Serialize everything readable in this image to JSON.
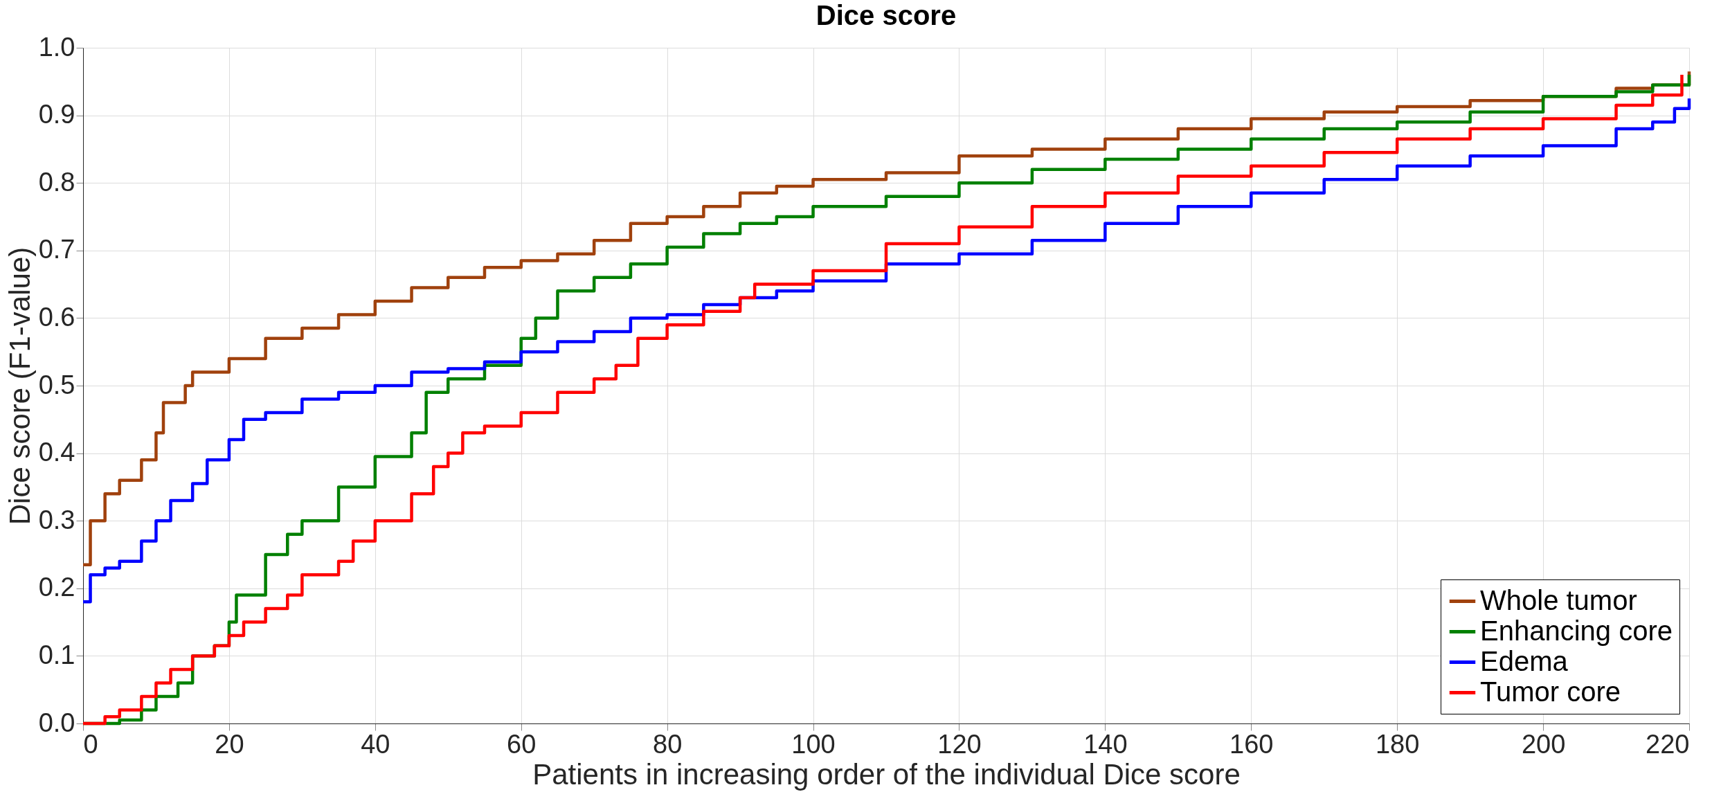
{
  "chart_data": {
    "type": "step",
    "title": "Dice score",
    "xlabel": "Patients in increasing order of the individual Dice score",
    "ylabel": "Dice score (F1-value)",
    "xlim": [
      0,
      220
    ],
    "xticks": [
      0,
      20,
      40,
      60,
      80,
      100,
      120,
      140,
      160,
      180,
      200,
      220
    ],
    "ylim": [
      0,
      1
    ],
    "yticks": [
      {
        "value": 0,
        "label": "0.0"
      },
      0.1,
      0.2,
      0.3,
      0.4,
      0.5,
      0.6,
      0.7,
      0.8,
      0.9,
      {
        "value": 1,
        "label": "1.0"
      }
    ],
    "grid": true,
    "legend": "bottom right",
    "line_style": "solid",
    "series": [
      {
        "name": "Whole tumor",
        "color": "#a0410d",
        "x": [
          0,
          1,
          3,
          5,
          8,
          10,
          11,
          14,
          15,
          20,
          25,
          30,
          35,
          40,
          45,
          50,
          55,
          60,
          65,
          70,
          75,
          80,
          85,
          90,
          95,
          100,
          110,
          120,
          130,
          140,
          150,
          160,
          170,
          180,
          190,
          200,
          210,
          215,
          220
        ],
        "values": [
          0.235,
          0.3,
          0.34,
          0.36,
          0.39,
          0.43,
          0.475,
          0.5,
          0.52,
          0.54,
          0.57,
          0.585,
          0.605,
          0.625,
          0.645,
          0.66,
          0.675,
          0.685,
          0.695,
          0.715,
          0.74,
          0.75,
          0.765,
          0.785,
          0.795,
          0.805,
          0.815,
          0.84,
          0.85,
          0.865,
          0.88,
          0.895,
          0.905,
          0.913,
          0.922,
          0.928,
          0.94,
          0.945,
          0.965
        ]
      },
      {
        "name": "Enhancing core",
        "color": "#008000",
        "x": [
          0,
          5,
          8,
          10,
          13,
          15,
          18,
          20,
          21,
          25,
          28,
          30,
          35,
          40,
          45,
          47,
          50,
          55,
          60,
          62,
          65,
          70,
          75,
          80,
          85,
          90,
          95,
          100,
          110,
          120,
          130,
          140,
          150,
          160,
          170,
          180,
          190,
          200,
          210,
          215,
          220
        ],
        "values": [
          0,
          0.005,
          0.02,
          0.04,
          0.06,
          0.1,
          0.115,
          0.15,
          0.19,
          0.25,
          0.28,
          0.3,
          0.35,
          0.395,
          0.43,
          0.49,
          0.51,
          0.53,
          0.57,
          0.6,
          0.64,
          0.66,
          0.68,
          0.705,
          0.725,
          0.74,
          0.75,
          0.765,
          0.78,
          0.8,
          0.82,
          0.835,
          0.85,
          0.865,
          0.88,
          0.89,
          0.905,
          0.928,
          0.935,
          0.945,
          0.96
        ]
      },
      {
        "name": "Edema",
        "color": "#0000ff",
        "x": [
          0,
          1,
          3,
          5,
          8,
          10,
          12,
          15,
          17,
          20,
          22,
          25,
          30,
          35,
          40,
          45,
          50,
          55,
          60,
          65,
          70,
          75,
          80,
          85,
          90,
          95,
          100,
          110,
          120,
          130,
          140,
          150,
          160,
          170,
          180,
          190,
          200,
          210,
          215,
          218,
          220
        ],
        "values": [
          0.18,
          0.22,
          0.23,
          0.24,
          0.27,
          0.3,
          0.33,
          0.355,
          0.39,
          0.42,
          0.45,
          0.46,
          0.48,
          0.49,
          0.5,
          0.52,
          0.525,
          0.535,
          0.55,
          0.565,
          0.58,
          0.6,
          0.605,
          0.62,
          0.63,
          0.64,
          0.655,
          0.68,
          0.695,
          0.715,
          0.74,
          0.765,
          0.785,
          0.805,
          0.825,
          0.84,
          0.855,
          0.88,
          0.89,
          0.91,
          0.925
        ]
      },
      {
        "name": "Tumor core",
        "color": "#ff0000",
        "x": [
          0,
          3,
          5,
          8,
          10,
          12,
          15,
          18,
          20,
          22,
          25,
          28,
          30,
          35,
          37,
          40,
          45,
          48,
          50,
          52,
          55,
          60,
          65,
          70,
          73,
          76,
          80,
          85,
          90,
          92,
          100,
          110,
          120,
          130,
          140,
          150,
          160,
          170,
          180,
          190,
          200,
          210,
          215,
          219
        ],
        "values": [
          0,
          0.01,
          0.02,
          0.04,
          0.06,
          0.08,
          0.1,
          0.115,
          0.13,
          0.15,
          0.17,
          0.19,
          0.22,
          0.24,
          0.27,
          0.3,
          0.34,
          0.38,
          0.4,
          0.43,
          0.44,
          0.46,
          0.49,
          0.51,
          0.53,
          0.57,
          0.59,
          0.61,
          0.63,
          0.65,
          0.67,
          0.71,
          0.735,
          0.765,
          0.785,
          0.81,
          0.825,
          0.845,
          0.865,
          0.88,
          0.895,
          0.915,
          0.93,
          0.96
        ]
      }
    ]
  }
}
